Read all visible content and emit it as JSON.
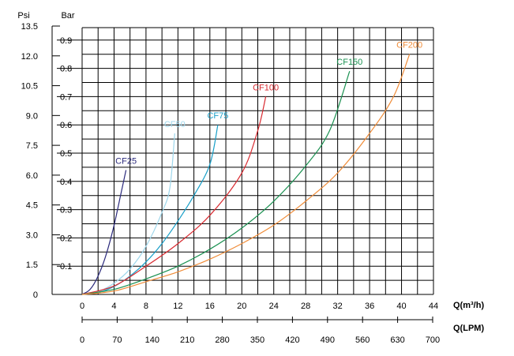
{
  "chart_data": {
    "type": "line",
    "left_axes": [
      {
        "label": "Psi",
        "ticks": [
          "0",
          "1.5",
          "3.0",
          "4.5",
          "6.0",
          "7.5",
          "9.0",
          "10.5",
          "12.0",
          "13.5"
        ]
      },
      {
        "label": "Bar",
        "ticks": [
          "0.1",
          "0.2",
          "0.3",
          "0.4",
          "0.5",
          "0.6",
          "0.7",
          "0.8",
          "0.9"
        ]
      }
    ],
    "xlabel": "Q(m³/h)",
    "xlabel2": "Q(LPM)",
    "x_ticks": [
      "0",
      "4",
      "8",
      "12",
      "16",
      "20",
      "24",
      "28",
      "32",
      "36",
      "40",
      "44"
    ],
    "x2_ticks": [
      "0",
      "70",
      "140",
      "210",
      "280",
      "350",
      "420",
      "490",
      "560",
      "630",
      "700"
    ],
    "xlim": [
      0,
      44
    ],
    "ylim": [
      0,
      0.95
    ],
    "y_unit": "bar",
    "grid": true,
    "series": [
      {
        "name": "CF25",
        "color": "#2b2a7c",
        "x": [
          0,
          1,
          2,
          3,
          4,
          5,
          5.5
        ],
        "y": [
          0,
          0.018,
          0.065,
          0.14,
          0.245,
          0.375,
          0.44
        ]
      },
      {
        "name": "CF50",
        "color": "#9ed7ec",
        "x": [
          0,
          2,
          4,
          6,
          8,
          10,
          11,
          11.6
        ],
        "y": [
          0,
          0.01,
          0.04,
          0.09,
          0.17,
          0.29,
          0.38,
          0.57
        ]
      },
      {
        "name": "CF75",
        "color": "#189fc8",
        "x": [
          0,
          2,
          4,
          6,
          8,
          10,
          12,
          14,
          16,
          17
        ],
        "y": [
          0,
          0.007,
          0.028,
          0.065,
          0.115,
          0.18,
          0.26,
          0.35,
          0.46,
          0.6
        ]
      },
      {
        "name": "CF100",
        "color": "#d92a30",
        "x": [
          0,
          4,
          8,
          12,
          16,
          20,
          22,
          23
        ],
        "y": [
          0,
          0.03,
          0.1,
          0.18,
          0.28,
          0.43,
          0.58,
          0.7
        ]
      },
      {
        "name": "CF150",
        "color": "#1a9151",
        "x": [
          0,
          4,
          8,
          12,
          16,
          20,
          24,
          28,
          31,
          33.5
        ],
        "y": [
          0,
          0.018,
          0.055,
          0.1,
          0.16,
          0.235,
          0.33,
          0.455,
          0.58,
          0.79
        ]
      },
      {
        "name": "CF200",
        "color": "#f08c38",
        "x": [
          0,
          4,
          8,
          12,
          16,
          20,
          24,
          28,
          32,
          36,
          39,
          41
        ],
        "y": [
          0,
          0.012,
          0.045,
          0.08,
          0.125,
          0.18,
          0.245,
          0.33,
          0.43,
          0.57,
          0.7,
          0.85
        ]
      }
    ]
  }
}
